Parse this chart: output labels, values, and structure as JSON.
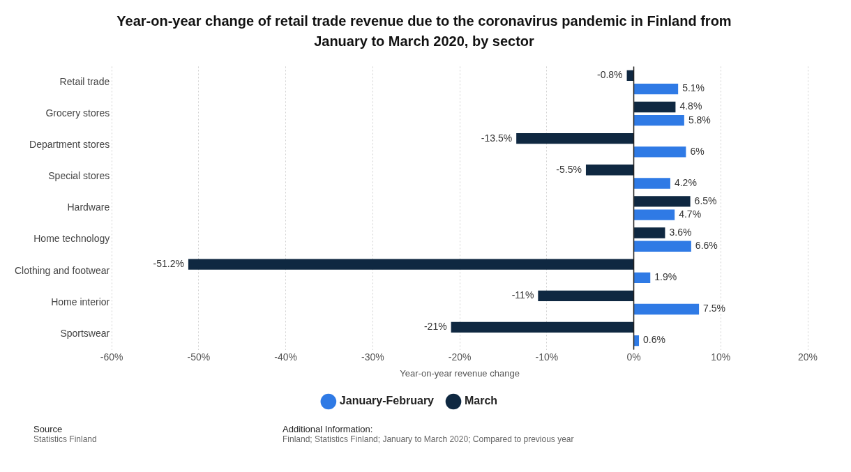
{
  "chart_data": {
    "type": "bar",
    "orientation": "horizontal",
    "title": "Year-on-year change of retail trade revenue due to the coronavirus pandemic in Finland from January to March 2020, by sector",
    "xlabel": "Year-on-year revenue change",
    "categories": [
      "Retail trade",
      "Grocery stores",
      "Department stores",
      "Special stores",
      "Hardware",
      "Home technology",
      "Clothing and footwear",
      "Home interior",
      "Sportswear"
    ],
    "series": [
      {
        "name": "March",
        "color": "#0f2841",
        "values": [
          -0.8,
          4.8,
          -13.5,
          -5.5,
          6.5,
          3.6,
          -51.2,
          -11,
          -21
        ],
        "value_labels": [
          "-0.8%",
          "4.8%",
          "-13.5%",
          "-5.5%",
          "6.5%",
          "3.6%",
          "-51.2%",
          "-11%",
          "-21%"
        ]
      },
      {
        "name": "January-February",
        "color": "#2f7ae5",
        "values": [
          5.1,
          5.8,
          6,
          4.2,
          4.7,
          6.6,
          1.9,
          7.5,
          0.6
        ],
        "value_labels": [
          "5.1%",
          "5.8%",
          "6%",
          "4.2%",
          "4.7%",
          "6.6%",
          "1.9%",
          "7.5%",
          "0.6%"
        ]
      }
    ],
    "xlim": [
      -60,
      20
    ],
    "xticks": [
      {
        "value": -60,
        "label": "-60%"
      },
      {
        "value": -50,
        "label": "-50%"
      },
      {
        "value": -40,
        "label": "-40%"
      },
      {
        "value": -30,
        "label": "-30%"
      },
      {
        "value": -20,
        "label": "-20%"
      },
      {
        "value": -10,
        "label": "-10%"
      },
      {
        "value": 0,
        "label": "0%"
      },
      {
        "value": 10,
        "label": "10%"
      },
      {
        "value": 20,
        "label": "20%"
      }
    ],
    "grid": "x",
    "legend": "bottom",
    "annotations": [
      "Source",
      "Statistics Finland",
      "Additional Information:",
      "Finland; Statistics Finland; January to March 2020; Compared to previous year"
    ]
  }
}
